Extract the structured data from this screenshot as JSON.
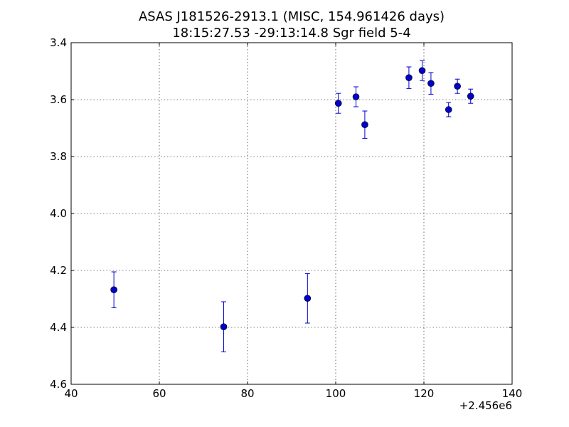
{
  "chart_data": {
    "type": "scatter",
    "title": "ASAS J181526-2913.1  (MISC, 154.961426 days)",
    "subtitle": "18:15:27.53 -29:13:14.8 Sgr field 5-4",
    "xlabel": "",
    "ylabel": "",
    "x_offset_label": "+2.456e6",
    "xlim": [
      40,
      140
    ],
    "ylim": [
      3.4,
      4.6
    ],
    "y_inverted": true,
    "grid": true,
    "x_ticks": [
      "40",
      "60",
      "80",
      "100",
      "120",
      "140"
    ],
    "y_ticks": [
      "3.4",
      "3.6",
      "3.8",
      "4.0",
      "4.2",
      "4.4",
      "4.6"
    ],
    "marker_color": "#0000cc",
    "points": [
      {
        "x": 49.7,
        "y": 4.268,
        "err": 0.063
      },
      {
        "x": 74.6,
        "y": 4.398,
        "err": 0.088
      },
      {
        "x": 93.6,
        "y": 4.298,
        "err": 0.087
      },
      {
        "x": 100.6,
        "y": 3.613,
        "err": 0.035
      },
      {
        "x": 104.6,
        "y": 3.59,
        "err": 0.035
      },
      {
        "x": 106.6,
        "y": 3.688,
        "err": 0.048
      },
      {
        "x": 116.6,
        "y": 3.523,
        "err": 0.038
      },
      {
        "x": 119.6,
        "y": 3.498,
        "err": 0.035
      },
      {
        "x": 121.6,
        "y": 3.543,
        "err": 0.038
      },
      {
        "x": 125.6,
        "y": 3.635,
        "err": 0.025
      },
      {
        "x": 127.6,
        "y": 3.553,
        "err": 0.025
      },
      {
        "x": 130.6,
        "y": 3.588,
        "err": 0.025
      }
    ]
  }
}
